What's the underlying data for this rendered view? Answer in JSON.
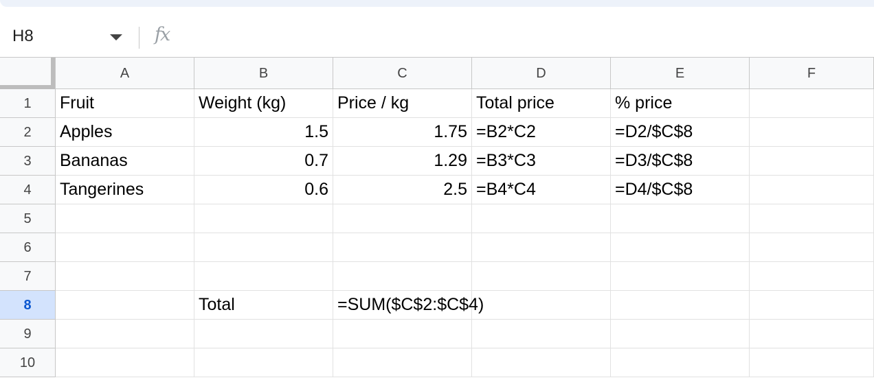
{
  "formula_bar": {
    "name_box": "H8",
    "fx_label": "fx",
    "formula": ""
  },
  "columns": [
    "A",
    "B",
    "C",
    "D",
    "E",
    "F"
  ],
  "rows": [
    "1",
    "2",
    "3",
    "4",
    "5",
    "6",
    "7",
    "8",
    "9",
    "10"
  ],
  "selected_cell": "H8",
  "cells": {
    "A1": "Fruit",
    "B1": "Weight (kg)",
    "C1": "Price / kg",
    "D1": "Total price",
    "E1": "% price",
    "A2": "Apples",
    "B2": "1.5",
    "C2": "1.75",
    "D2": "=B2*C2",
    "E2": "=D2/$C$8",
    "A3": "Bananas",
    "B3": "0.7",
    "C3": "1.29",
    "D3": "=B3*C3",
    "E3": "=D3/$C$8",
    "A4": "Tangerines",
    "B4": "0.6",
    "C4": "2.5",
    "D4": "=B4*C4",
    "E4": "=D4/$C$8",
    "B8": "Total",
    "C8": "=SUM($C$2:$C$4)"
  },
  "colors": {
    "header_bg": "#f8f9fa",
    "selected_row_bg": "#d3e3fd",
    "selected_row_text": "#0b57d0",
    "gridline": "#e1e1e1"
  }
}
